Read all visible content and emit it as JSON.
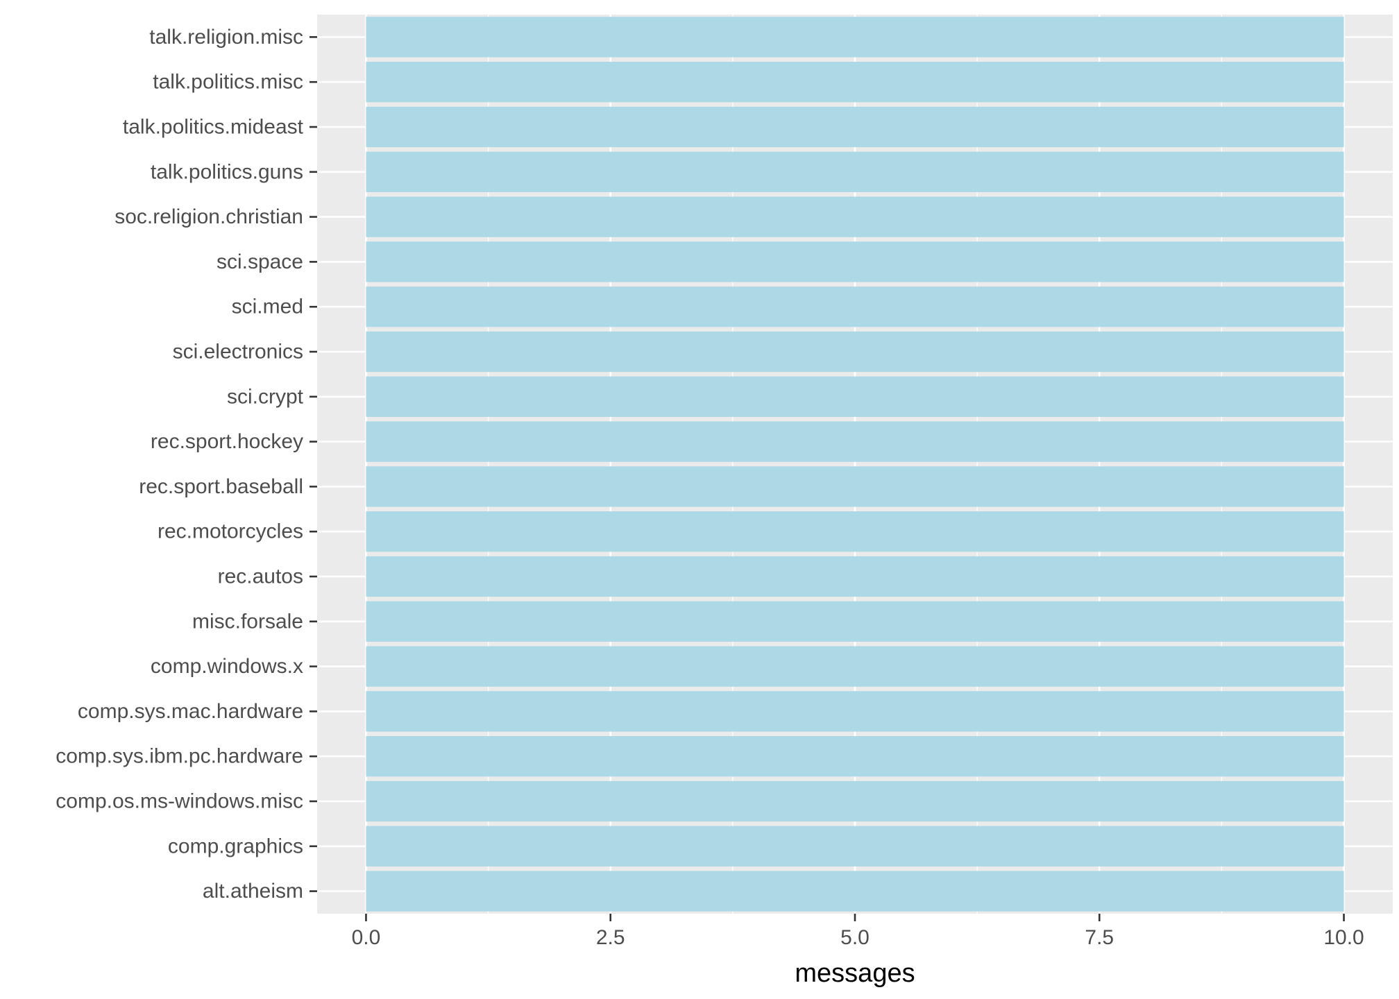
{
  "chart_data": {
    "type": "bar",
    "orientation": "horizontal",
    "categories": [
      "alt.atheism",
      "comp.graphics",
      "comp.os.ms-windows.misc",
      "comp.sys.ibm.pc.hardware",
      "comp.sys.mac.hardware",
      "comp.windows.x",
      "misc.forsale",
      "rec.autos",
      "rec.motorcycles",
      "rec.sport.baseball",
      "rec.sport.hockey",
      "sci.crypt",
      "sci.electronics",
      "sci.med",
      "sci.space",
      "soc.religion.christian",
      "talk.politics.guns",
      "talk.politics.mideast",
      "talk.politics.misc",
      "talk.religion.misc"
    ],
    "values": [
      10,
      10,
      10,
      10,
      10,
      10,
      10,
      10,
      10,
      10,
      10,
      10,
      10,
      10,
      10,
      10,
      10,
      10,
      10,
      10
    ],
    "xlabel": "messages",
    "ylabel": "",
    "xlim": [
      -0.5,
      10.5
    ],
    "x_ticks": [
      0,
      2.5,
      5,
      7.5,
      10
    ],
    "x_tick_labels": [
      "0.0",
      "2.5",
      "5.0",
      "7.5",
      "10.0"
    ],
    "grid": true,
    "colors": {
      "bar_fill": "#add8e6",
      "panel_background": "#ebebeb",
      "grid_major": "#ffffff",
      "tick_text": "#4d4d4d",
      "axis_title": "#000000"
    }
  }
}
